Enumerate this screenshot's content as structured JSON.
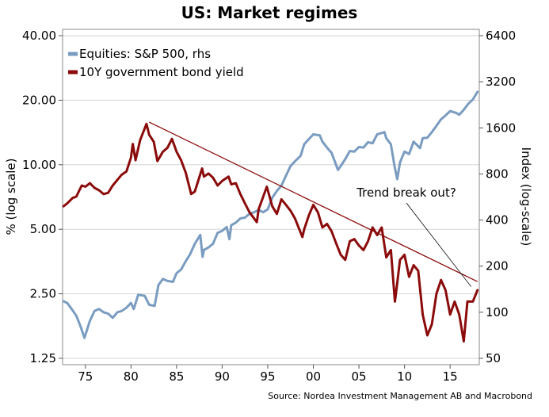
{
  "chart_data": {
    "type": "line",
    "title": "US: Market regimes",
    "ylabel_left": "% (log scale)",
    "ylabel_right": "Index (log-scale)",
    "source": "Source: Nordea Investment Management AB and Macrobond",
    "x_range": [
      1972.5,
      2018.2
    ],
    "x_ticks": [
      {
        "value": 1975,
        "label": "75"
      },
      {
        "value": 1980,
        "label": "80"
      },
      {
        "value": 1985,
        "label": "85"
      },
      {
        "value": 1990,
        "label": "90"
      },
      {
        "value": 1995,
        "label": "95"
      },
      {
        "value": 2000,
        "label": "00"
      },
      {
        "value": 2005,
        "label": "05"
      },
      {
        "value": 2010,
        "label": "10"
      },
      {
        "value": 2015,
        "label": "15"
      }
    ],
    "left_axis": {
      "scale": "log",
      "range": [
        1.25,
        40
      ],
      "ticks": [
        {
          "value": 1.25,
          "label": "1.25"
        },
        {
          "value": 2.5,
          "label": "2.50"
        },
        {
          "value": 5,
          "label": "5.00"
        },
        {
          "value": 10,
          "label": "10.00"
        },
        {
          "value": 20,
          "label": "20.00"
        },
        {
          "value": 40,
          "label": "40.00"
        }
      ]
    },
    "right_axis": {
      "scale": "log",
      "range": [
        50,
        6400
      ],
      "ticks": [
        {
          "value": 50,
          "label": "50"
        },
        {
          "value": 100,
          "label": "100"
        },
        {
          "value": 200,
          "label": "200"
        },
        {
          "value": 400,
          "label": "400"
        },
        {
          "value": 800,
          "label": "800"
        },
        {
          "value": 1600,
          "label": "1600"
        },
        {
          "value": 3200,
          "label": "3200"
        },
        {
          "value": 6400,
          "label": "6400"
        }
      ]
    },
    "grid": true,
    "legend_position": "top-left",
    "series": [
      {
        "name": "Equities: S&P 500, rhs",
        "axis": "right",
        "color": "#7a9cc0",
        "x": [
          1972.6,
          1973.0,
          1973.5,
          1974.0,
          1974.5,
          1974.9,
          1975.5,
          1976.0,
          1976.5,
          1977.0,
          1977.5,
          1978.0,
          1978.5,
          1979.0,
          1979.5,
          1980.0,
          1980.3,
          1980.8,
          1981.5,
          1982.0,
          1982.6,
          1983.0,
          1983.5,
          1984.0,
          1984.6,
          1985.0,
          1985.5,
          1986.0,
          1986.5,
          1987.0,
          1987.6,
          1987.85,
          1988.0,
          1988.5,
          1989.0,
          1989.5,
          1990.0,
          1990.5,
          1990.8,
          1991.0,
          1991.5,
          1992.0,
          1992.5,
          1993.0,
          1993.5,
          1994.0,
          1994.5,
          1995.0,
          1995.5,
          1996.0,
          1996.5,
          1997.0,
          1997.5,
          1998.0,
          1998.6,
          1999.0,
          1999.5,
          2000.0,
          2000.7,
          2001.0,
          2001.7,
          2002.0,
          2002.7,
          2003.0,
          2003.5,
          2004.0,
          2004.5,
          2005.0,
          2005.5,
          2006.0,
          2006.5,
          2007.0,
          2007.8,
          2008.0,
          2008.5,
          2008.9,
          2009.2,
          2009.5,
          2010.0,
          2010.5,
          2011.0,
          2011.7,
          2012.0,
          2012.5,
          2013.0,
          2013.5,
          2014.0,
          2014.5,
          2015.0,
          2015.7,
          2016.0,
          2016.5,
          2017.0,
          2017.5,
          2018.0
        ],
        "values": [
          118,
          115,
          105,
          95,
          80,
          68,
          88,
          102,
          105,
          100,
          98,
          92,
          100,
          102,
          107,
          115,
          105,
          130,
          128,
          112,
          110,
          150,
          165,
          160,
          158,
          180,
          190,
          215,
          240,
          280,
          320,
          230,
          255,
          265,
          280,
          330,
          340,
          360,
          300,
          370,
          385,
          410,
          415,
          440,
          450,
          465,
          450,
          470,
          560,
          620,
          670,
          780,
          900,
          970,
          1050,
          1250,
          1350,
          1450,
          1430,
          1300,
          1150,
          1100,
          850,
          900,
          1000,
          1130,
          1120,
          1200,
          1190,
          1290,
          1270,
          1450,
          1500,
          1370,
          1250,
          900,
          740,
          950,
          1120,
          1080,
          1300,
          1180,
          1370,
          1380,
          1500,
          1650,
          1820,
          1930,
          2060,
          2000,
          1950,
          2100,
          2300,
          2450,
          2750
        ]
      },
      {
        "name": "10Y government bond yield",
        "axis": "left",
        "color": "#8b0b0b",
        "x": [
          1972.6,
          1973.0,
          1973.6,
          1974.0,
          1974.6,
          1975.0,
          1975.5,
          1976.0,
          1976.5,
          1977.0,
          1977.5,
          1978.0,
          1978.5,
          1979.0,
          1979.5,
          1980.0,
          1980.2,
          1980.5,
          1981.0,
          1981.7,
          1982.0,
          1982.5,
          1982.9,
          1983.5,
          1984.0,
          1984.5,
          1985.0,
          1985.5,
          1986.0,
          1986.6,
          1987.0,
          1987.8,
          1988.0,
          1988.5,
          1989.0,
          1989.5,
          1990.0,
          1990.7,
          1991.0,
          1991.5,
          1992.0,
          1992.5,
          1993.0,
          1993.8,
          1994.0,
          1994.9,
          1995.5,
          1996.0,
          1996.5,
          1997.0,
          1997.5,
          1998.0,
          1998.8,
          1999.0,
          1999.5,
          2000.0,
          2000.5,
          2001.0,
          2001.5,
          2002.0,
          2002.5,
          2003.0,
          2003.5,
          2004.0,
          2004.5,
          2005.0,
          2005.5,
          2006.0,
          2006.5,
          2007.0,
          2007.5,
          2008.0,
          2008.5,
          2008.95,
          2009.2,
          2009.5,
          2010.0,
          2010.5,
          2011.0,
          2011.5,
          2012.0,
          2012.5,
          2013.0,
          2013.5,
          2014.0,
          2014.5,
          2015.0,
          2015.5,
          2016.0,
          2016.5,
          2016.9,
          2017.5,
          2018.0
        ],
        "values": [
          6.4,
          6.6,
          7.0,
          7.1,
          8.0,
          7.9,
          8.2,
          7.8,
          7.6,
          7.3,
          7.4,
          8.0,
          8.5,
          9.0,
          9.3,
          10.8,
          12.5,
          10.5,
          13.0,
          15.5,
          13.8,
          12.8,
          10.4,
          11.5,
          12.0,
          13.2,
          11.5,
          10.5,
          9.2,
          7.3,
          7.5,
          9.6,
          8.8,
          9.1,
          8.7,
          8.0,
          8.4,
          8.8,
          8.1,
          8.2,
          7.3,
          6.6,
          6.0,
          5.4,
          6.2,
          7.9,
          6.4,
          5.9,
          6.9,
          6.5,
          6.1,
          5.6,
          4.6,
          5.0,
          5.8,
          6.5,
          6.0,
          5.1,
          5.3,
          4.9,
          4.3,
          3.8,
          3.6,
          4.4,
          4.5,
          4.2,
          4.0,
          4.4,
          5.1,
          4.7,
          5.1,
          3.7,
          4.0,
          2.3,
          2.8,
          3.6,
          3.8,
          3.0,
          3.4,
          3.2,
          2.0,
          1.6,
          1.8,
          2.5,
          2.9,
          2.6,
          2.0,
          2.3,
          2.0,
          1.5,
          2.3,
          2.3,
          2.6
        ]
      }
    ],
    "annotations": [
      {
        "type": "trend-line",
        "from": {
          "x": 1982.0,
          "y": 15.8
        },
        "to": {
          "x": 2018.0,
          "y": 2.85
        }
      },
      {
        "type": "callout",
        "text": "Trend break out?",
        "target": {
          "x": 2017.3,
          "y": 2.7
        }
      }
    ]
  }
}
